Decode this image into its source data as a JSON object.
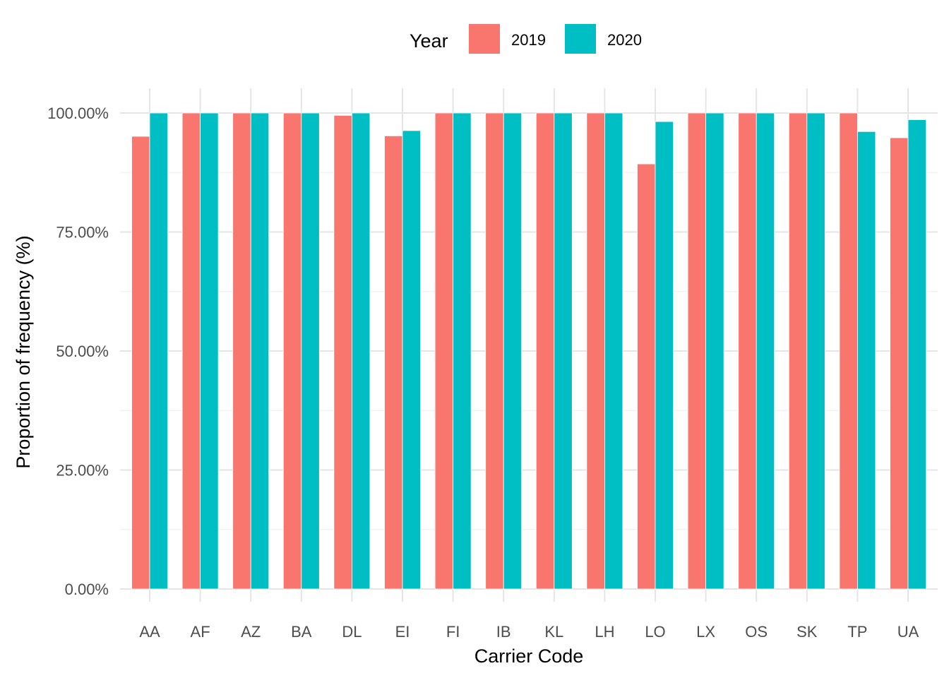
{
  "chart_data": {
    "type": "bar",
    "xlabel": "Carrier Code",
    "ylabel": "Proportion of frequency (%)",
    "ylim": [
      0,
      1.05
    ],
    "yticks": [
      0,
      0.25,
      0.5,
      0.75,
      1.0
    ],
    "ytick_labels": [
      "0.00%",
      "25.00%",
      "50.00%",
      "75.00%",
      "100.00%"
    ],
    "grid": true,
    "legend": {
      "title": "Year",
      "position": "top"
    },
    "categories": [
      "AA",
      "AF",
      "AZ",
      "BA",
      "DL",
      "EI",
      "FI",
      "IB",
      "KL",
      "LH",
      "LO",
      "LX",
      "OS",
      "SK",
      "TP",
      "UA"
    ],
    "series": [
      {
        "name": "2019",
        "color": "#F8766D",
        "values": [
          0.951,
          1.0,
          1.0,
          1.0,
          0.995,
          0.952,
          1.0,
          1.0,
          1.0,
          1.0,
          0.893,
          1.0,
          1.0,
          1.0,
          1.0,
          0.948
        ]
      },
      {
        "name": "2020",
        "color": "#00BFC4",
        "values": [
          1.0,
          1.0,
          1.0,
          1.0,
          1.0,
          0.963,
          1.0,
          1.0,
          1.0,
          1.0,
          0.982,
          1.0,
          1.0,
          1.0,
          0.961,
          0.986
        ]
      }
    ]
  }
}
